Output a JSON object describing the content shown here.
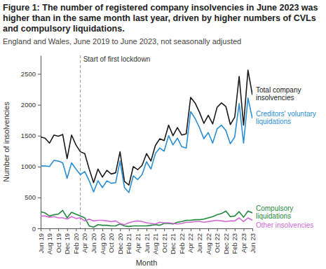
{
  "chart_data": {
    "type": "line",
    "title": "Figure 1: The number of registered company insolvencies in June 2023 was higher than in the same month last year, driven by higher numbers of CVLs and compulsory liquidations.",
    "subtitle": "England and Wales, June 2019 to June 2023, not seasonally adjusted",
    "x_label": "Month",
    "y_label": "Number of insolvencies",
    "categories": [
      "Jun 19",
      null,
      "Aug 19",
      null,
      "Oct 19",
      null,
      "Dec 19",
      null,
      "Feb 20",
      null,
      "Apr 20",
      null,
      "Jun 20",
      null,
      "Aug 20",
      null,
      "Oct 20",
      null,
      "Dec 20",
      null,
      "Feb 21",
      null,
      "Apr 21",
      null,
      "Jun 21",
      null,
      "Aug 21",
      null,
      "Oct 21",
      null,
      "Dec 21",
      null,
      "Feb 22",
      null,
      "Apr 22",
      null,
      "Jun 22",
      null,
      "Aug 22",
      null,
      "Oct 22",
      null,
      "Dec 22",
      null,
      "Feb 23",
      null,
      "Apr 23",
      null,
      "Jun 23"
    ],
    "series": [
      {
        "name": "Total company insolvencies",
        "color": "#1a1a1a",
        "values": [
          1480,
          1460,
          1380,
          1510,
          1490,
          1520,
          1130,
          1510,
          1350,
          1240,
          1210,
          960,
          740,
          960,
          830,
          940,
          880,
          900,
          1240,
          760,
          700,
          1000,
          950,
          1020,
          1210,
          1090,
          1340,
          1450,
          1420,
          1670,
          1500,
          1630,
          1510,
          1530,
          2120,
          2030,
          1880,
          1700,
          1830,
          1690,
          1960,
          2030,
          1970,
          1680,
          1800,
          2460,
          1670,
          2560,
          2160
        ]
      },
      {
        "name": "Creditors' voluntary liquidations",
        "color": "#2a8fd4",
        "values": [
          1010,
          1010,
          1000,
          1100,
          1090,
          1060,
          810,
          1060,
          960,
          870,
          920,
          770,
          590,
          770,
          660,
          770,
          730,
          740,
          1090,
          660,
          580,
          850,
          790,
          870,
          1080,
          960,
          1210,
          1300,
          1250,
          1500,
          1350,
          1460,
          1320,
          1300,
          1890,
          1780,
          1630,
          1450,
          1550,
          1380,
          1610,
          1670,
          1580,
          1370,
          1480,
          2020,
          1380,
          2110,
          1780
        ]
      },
      {
        "name": "Compulsory liquidations",
        "color": "#1f8a3c",
        "values": [
          270,
          250,
          200,
          220,
          230,
          290,
          170,
          260,
          230,
          200,
          170,
          40,
          20,
          60,
          50,
          50,
          40,
          40,
          70,
          40,
          30,
          40,
          40,
          40,
          40,
          50,
          60,
          50,
          80,
          80,
          70,
          100,
          110,
          130,
          130,
          140,
          140,
          150,
          170,
          190,
          220,
          240,
          280,
          190,
          200,
          270,
          180,
          280,
          250
        ]
      },
      {
        "name": "Other insolvencies",
        "color": "#d16ad6",
        "values": [
          200,
          200,
          180,
          190,
          170,
          170,
          150,
          190,
          160,
          170,
          120,
          150,
          120,
          130,
          130,
          120,
          110,
          120,
          80,
          60,
          90,
          110,
          120,
          110,
          90,
          80,
          70,
          100,
          90,
          90,
          80,
          70,
          80,
          100,
          100,
          110,
          110,
          100,
          110,
          120,
          130,
          120,
          110,
          120,
          120,
          170,
          110,
          170,
          130
        ]
      }
    ],
    "ylim": [
      0,
      2800
    ],
    "yticks": [
      0,
      500,
      1000,
      1500,
      2000,
      2500
    ],
    "grid": false,
    "annotations": [
      {
        "text": "Start of first lockdown",
        "index": 9
      }
    ]
  }
}
